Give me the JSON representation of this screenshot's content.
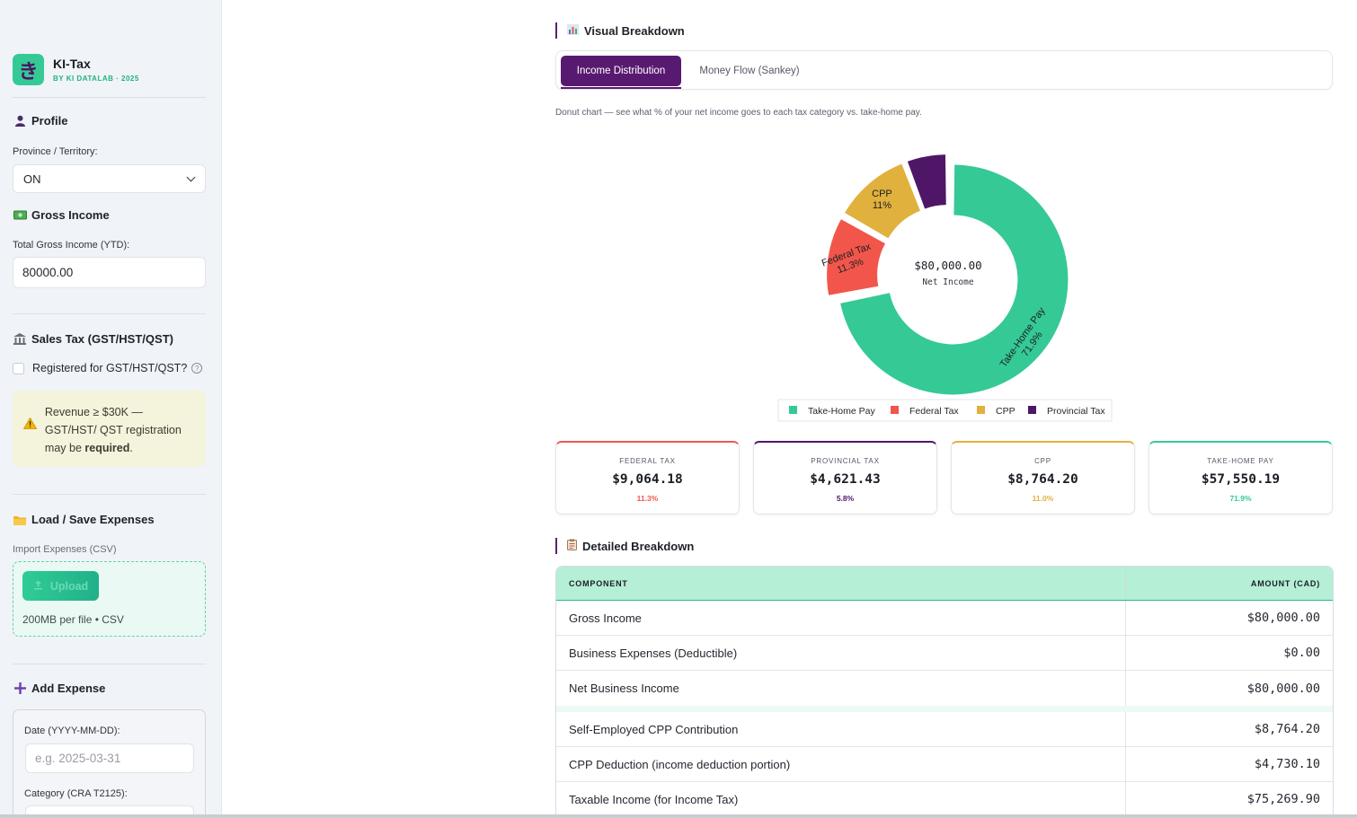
{
  "brand": {
    "logo_glyph": "き",
    "title": "KI-Tax",
    "subtitle": "BY KI DATALAB · 2025"
  },
  "profile": {
    "heading": "Profile",
    "province_label": "Province / Territory:",
    "province_value": "ON"
  },
  "gross": {
    "heading": "Gross Income",
    "label": "Total Gross Income (YTD):",
    "value": "80000.00"
  },
  "sales_tax": {
    "heading": "Sales Tax (GST/HST/QST)",
    "checkbox_label": "Registered for GST/HST/QST?",
    "help_glyph": "?",
    "warning_text": "Revenue ≥ $30K — GST/HST/ QST registration may be ",
    "warning_bold": "required",
    "warning_end": "."
  },
  "expenses_io": {
    "heading": "Load / Save Expenses",
    "import_label": "Import Expenses (CSV)",
    "upload_button": "Upload",
    "upload_note": "200MB per file • CSV"
  },
  "add_expense": {
    "heading": "Add Expense",
    "date_label": "Date (YYYY-MM-DD):",
    "date_placeholder": "e.g. 2025-03-31",
    "category_label": "Category (CRA T2125):"
  },
  "visual": {
    "heading": "Visual Breakdown",
    "tabs": [
      "Income Distribution",
      "Money Flow (Sankey)"
    ],
    "caption": "Donut chart — see what % of your net income goes to each tax category vs. take-home pay."
  },
  "chart_data": {
    "type": "pie",
    "center_value": "$80,000.00",
    "center_label": "Net Income",
    "series": [
      {
        "name": "Take-Home Pay",
        "value": 71.9,
        "label": "71.9%",
        "color": "#35c996"
      },
      {
        "name": "Federal Tax",
        "value": 11.3,
        "label": "11.3%",
        "color": "#f2564b"
      },
      {
        "name": "CPP",
        "value": 11.0,
        "label": "11%",
        "color": "#e1b13d"
      },
      {
        "name": "Provincial Tax",
        "value": 5.78,
        "label": "5.78%",
        "color": "#4f1668"
      }
    ],
    "legend_position": "bottom"
  },
  "metrics": [
    {
      "key": "FEDERAL TAX",
      "value": "$9,064.18",
      "pct": "11.3%",
      "color": "#f2564b"
    },
    {
      "key": "PROVINCIAL TAX",
      "value": "$4,621.43",
      "pct": "5.8%",
      "color": "#4f1668"
    },
    {
      "key": "CPP",
      "value": "$8,764.20",
      "pct": "11.0%",
      "color": "#e1b13d"
    },
    {
      "key": "TAKE-HOME PAY",
      "value": "$57,550.19",
      "pct": "71.9%",
      "color": "#35c996"
    }
  ],
  "detailed": {
    "heading": "Detailed Breakdown",
    "columns": [
      "COMPONENT",
      "AMOUNT (CAD)"
    ],
    "rows": [
      [
        "Gross Income",
        "$80,000.00"
      ],
      [
        "Business Expenses (Deductible)",
        "$0.00"
      ],
      [
        "Net Business Income",
        "$80,000.00"
      ],
      [
        "Self-Employed CPP Contribution",
        "$8,764.20"
      ],
      [
        "CPP Deduction (income deduction portion)",
        "$4,730.10"
      ],
      [
        "Taxable Income (for Income Tax)",
        "$75,269.90"
      ]
    ]
  }
}
